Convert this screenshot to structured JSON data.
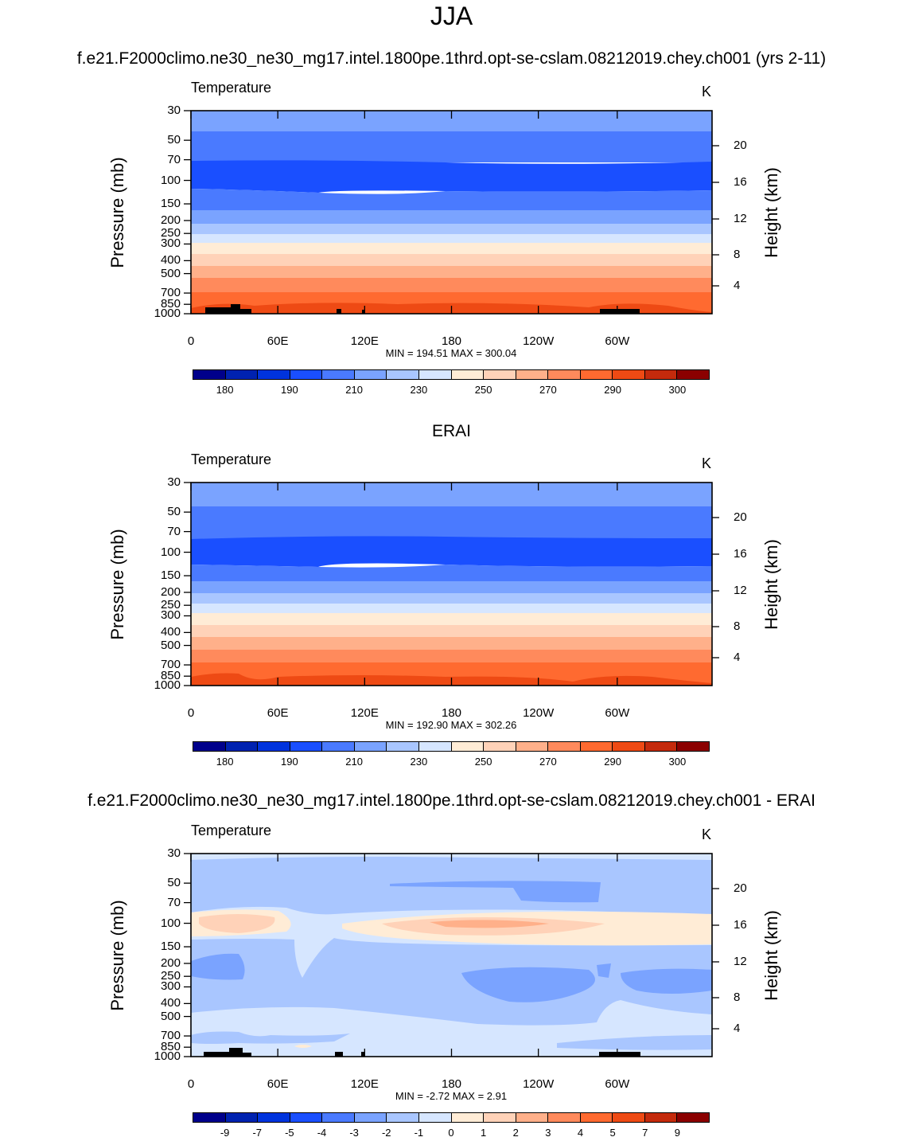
{
  "figure": {
    "title": "JJA",
    "panels": [
      {
        "title": "f.e21.F2000climo.ne30_ne30_mg17.intel.1800pe.1thrd.opt-se-cslam.08212019.chey.ch001 (yrs 2-11)",
        "left_label": "Temperature",
        "right_label": "K",
        "minmax": "MIN = 194.51  MAX = 300.04"
      },
      {
        "title": "ERAI",
        "left_label": "Temperature",
        "right_label": "K",
        "minmax": "MIN = 192.90  MAX = 302.26"
      },
      {
        "title": "f.e21.F2000climo.ne30_ne30_mg17.intel.1800pe.1thrd.opt-se-cslam.08212019.chey.ch001 - ERAI",
        "left_label": "Temperature",
        "right_label": "K",
        "minmax": "MIN =  -2.72  MAX =   2.91"
      }
    ],
    "ylabel": "Pressure (mb)",
    "ylabel_right": "Height (km)",
    "pressure_ticks": [
      "30",
      "50",
      "70",
      "100",
      "150",
      "200",
      "250",
      "300",
      "400",
      "500",
      "700",
      "850",
      "1000"
    ],
    "height_ticks": [
      "20",
      "16",
      "12",
      "8",
      "4"
    ],
    "x_ticks": [
      "0",
      "60E",
      "120E",
      "180",
      "120W",
      "60W"
    ],
    "colorbar_abs": {
      "labels": [
        "180",
        "190",
        "210",
        "230",
        "250",
        "270",
        "290",
        "300"
      ],
      "colors": [
        "#00008b",
        "#0022b0",
        "#0033dd",
        "#1a4fff",
        "#4a7aff",
        "#7aa3ff",
        "#a9c6ff",
        "#d6e6ff",
        "#ffecd6",
        "#ffd2b8",
        "#ffb08a",
        "#ff8a5c",
        "#ff6a30",
        "#ee4a14",
        "#c42a0c",
        "#8b0000"
      ]
    },
    "colorbar_diff": {
      "labels": [
        "-9",
        "-7",
        "-5",
        "-4",
        "-3",
        "-2",
        "-1",
        "0",
        "1",
        "2",
        "3",
        "4",
        "5",
        "7",
        "9"
      ],
      "colors": [
        "#00008b",
        "#0022b0",
        "#0033dd",
        "#1a4fff",
        "#4a7aff",
        "#7aa3ff",
        "#a9c6ff",
        "#d6e6ff",
        "#ffecd6",
        "#ffd2b8",
        "#ffb08a",
        "#ff8a5c",
        "#ff6a30",
        "#ee4a14",
        "#c42a0c",
        "#8b0000"
      ]
    }
  },
  "chart_data": [
    {
      "type": "heatmap",
      "title": "f.e21.F2000climo.ne30_ne30_mg17.intel.1800pe.1thrd.opt-se-cslam.08212019.chey.ch001 (yrs 2-11)",
      "variable": "Temperature",
      "units": "K",
      "xlabel": "",
      "ylabel": "Pressure (mb)",
      "ylabel_right": "Height (km)",
      "x_ticks": [
        "0",
        "60E",
        "120E",
        "180",
        "120W",
        "60W"
      ],
      "y_range_mb": [
        30,
        1000
      ],
      "min": 194.51,
      "max": 300.04,
      "zonal_profile_K": [
        {
          "p": 30,
          "T": 225
        },
        {
          "p": 50,
          "T": 215
        },
        {
          "p": 70,
          "T": 205
        },
        {
          "p": 100,
          "T": 198
        },
        {
          "p": 150,
          "T": 210
        },
        {
          "p": 200,
          "T": 220
        },
        {
          "p": 250,
          "T": 228
        },
        {
          "p": 300,
          "T": 236
        },
        {
          "p": 400,
          "T": 250
        },
        {
          "p": 500,
          "T": 258
        },
        {
          "p": 700,
          "T": 275
        },
        {
          "p": 850,
          "T": 285
        },
        {
          "p": 1000,
          "T": 293
        }
      ]
    },
    {
      "type": "heatmap",
      "title": "ERAI",
      "variable": "Temperature",
      "units": "K",
      "xlabel": "",
      "ylabel": "Pressure (mb)",
      "ylabel_right": "Height (km)",
      "x_ticks": [
        "0",
        "60E",
        "120E",
        "180",
        "120W",
        "60W"
      ],
      "y_range_mb": [
        30,
        1000
      ],
      "min": 192.9,
      "max": 302.26
    },
    {
      "type": "heatmap",
      "title": "f.e21.F2000climo.ne30_ne30_mg17.intel.1800pe.1thrd.opt-se-cslam.08212019.chey.ch001 - ERAI",
      "variable": "Temperature",
      "units": "K",
      "xlabel": "",
      "ylabel": "Pressure (mb)",
      "ylabel_right": "Height (km)",
      "x_ticks": [
        "0",
        "60E",
        "120E",
        "180",
        "120W",
        "60W"
      ],
      "y_range_mb": [
        30,
        1000
      ],
      "min": -2.72,
      "max": 2.91
    }
  ]
}
